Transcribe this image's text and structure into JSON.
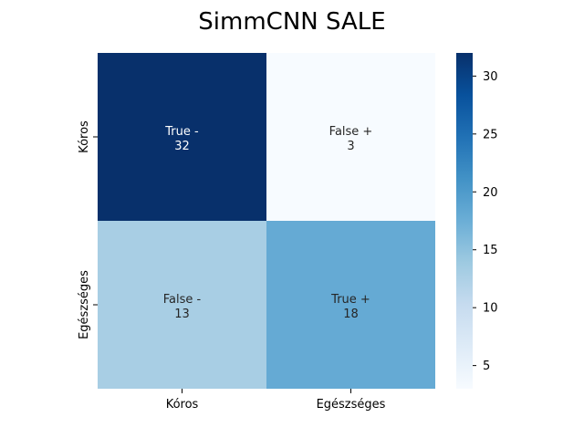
{
  "chart_data": {
    "type": "heatmap",
    "title": "SimmCNN SALE",
    "rows": [
      "Kóros",
      "Egészséges"
    ],
    "cols": [
      "Kóros",
      "Egészséges"
    ],
    "values": [
      [
        32,
        3
      ],
      [
        13,
        18
      ]
    ],
    "cell_labels": [
      [
        "True -",
        "False +"
      ],
      [
        "False -",
        "True +"
      ]
    ],
    "colormap": "Blues",
    "colorbar": {
      "range": [
        3,
        32
      ],
      "ticks": [
        5,
        10,
        15,
        20,
        25,
        30
      ]
    }
  }
}
